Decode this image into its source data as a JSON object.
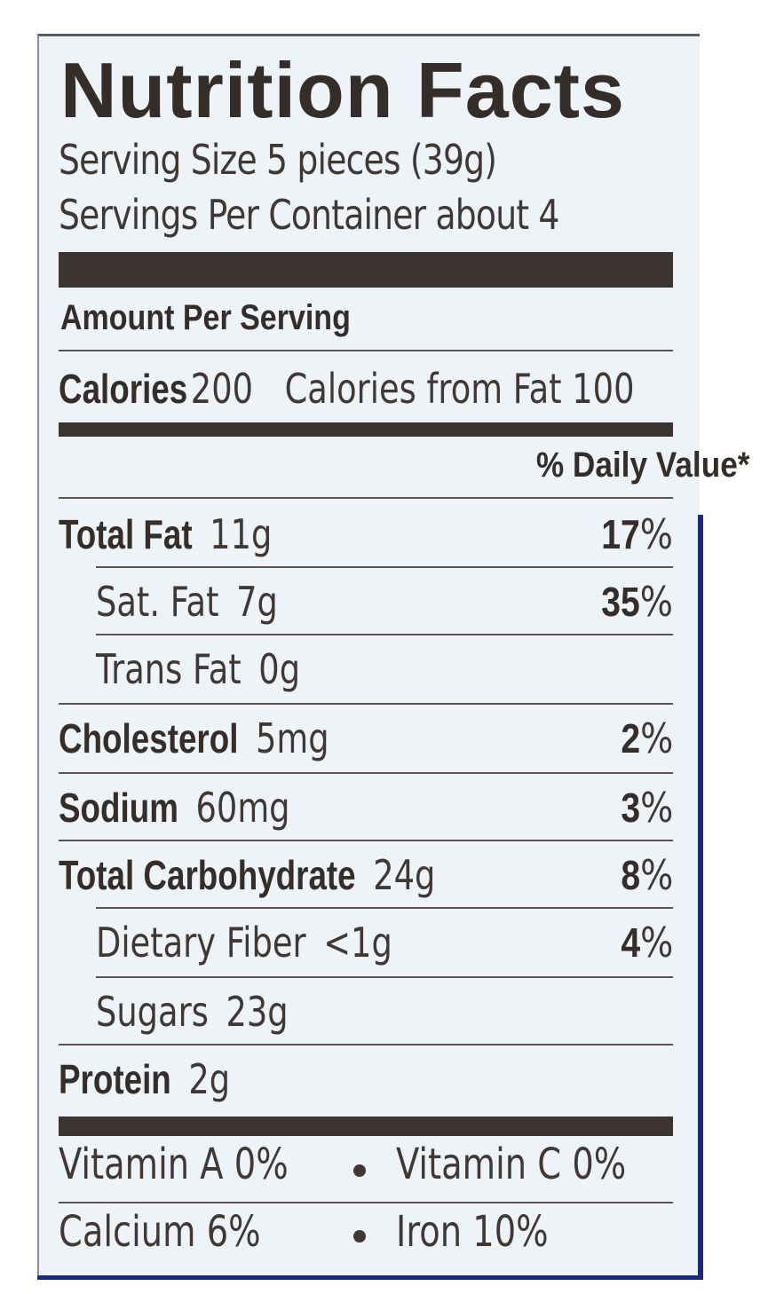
{
  "label": {
    "title": "Nutrition Facts",
    "serving_size": "Serving Size 5 pieces (39g)",
    "servings_per_container": "Servings Per Container about 4",
    "amount_per_serving": "Amount Per Serving",
    "calories_label": "Calories",
    "calories_value": "200",
    "calories_from_fat": "Calories from Fat 100",
    "daily_value_header": "% Daily Value*",
    "nutrients": [
      {
        "name": "Total Fat",
        "amount": "11g",
        "dv_num": "17",
        "dv_sym": "%"
      },
      {
        "name": "Sat. Fat",
        "amount": "7g",
        "dv_num": "35",
        "dv_sym": "%"
      },
      {
        "name": "Trans Fat",
        "amount": "0g",
        "dv_num": "",
        "dv_sym": ""
      },
      {
        "name": "Cholesterol",
        "amount": "5mg",
        "dv_num": "2",
        "dv_sym": "%"
      },
      {
        "name": "Sodium",
        "amount": "60mg",
        "dv_num": "3",
        "dv_sym": "%"
      },
      {
        "name": "Total Carbohydrate",
        "amount": "24g",
        "dv_num": "8",
        "dv_sym": "%"
      },
      {
        "name": "Dietary Fiber",
        "amount": "<1g",
        "dv_num": "4",
        "dv_sym": "%"
      },
      {
        "name": "Sugars",
        "amount": "23g",
        "dv_num": "",
        "dv_sym": ""
      },
      {
        "name": "Protein",
        "amount": "2g",
        "dv_num": "",
        "dv_sym": ""
      }
    ],
    "vitamins": {
      "vitamin_a": "Vitamin A  0%",
      "vitamin_c": "Vitamin C  0%",
      "calcium": "Calcium  6%",
      "iron": "Iron  10%"
    }
  }
}
